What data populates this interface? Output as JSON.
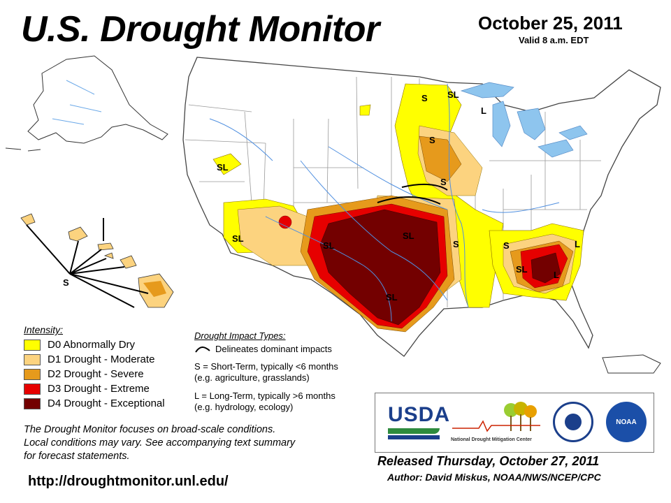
{
  "header": {
    "title": "U.S. Drought Monitor",
    "date": "October 25, 2011",
    "valid": "Valid 8 a.m. EDT"
  },
  "legend": {
    "title": "Intensity:",
    "items": [
      {
        "label": "D0 Abnormally Dry",
        "color": "#ffff00"
      },
      {
        "label": "D1 Drought - Moderate",
        "color": "#fcd37f"
      },
      {
        "label": "D2 Drought - Severe",
        "color": "#e69a1c"
      },
      {
        "label": "D3 Drought - Extreme",
        "color": "#e60000"
      },
      {
        "label": "D4 Drought - Exceptional",
        "color": "#730000"
      }
    ]
  },
  "impacts": {
    "title": "Drought Impact Types:",
    "delineates": "Delineates dominant impacts",
    "short_term": "S = Short-Term, typically <6 months",
    "short_term_eg": "(e.g. agriculture, grasslands)",
    "long_term": "L = Long-Term, typically >6 months",
    "long_term_eg": "(e.g. hydrology, ecology)"
  },
  "note": {
    "line1": "The Drought Monitor focuses on broad-scale conditions.",
    "line2": "Local conditions may vary. See accompanying text summary",
    "line3": "for forecast statements."
  },
  "url": "http://droughtmonitor.unl.edu/",
  "logos": {
    "usda": "USDA",
    "ndmc_prefix": "National",
    "ndmc_suffix": "Drought Mitigation Center",
    "noaa": "NOAA"
  },
  "released": "Released Thursday, October 27, 2011",
  "author": "Author: David Miskus, NOAA/NWS/NCEP/CPC",
  "map_labels": {
    "nw_sl": "SL",
    "az_sl": "SL",
    "hawaii_s": "S",
    "mn_s1": "S",
    "mn_sl": "SL",
    "mi_l": "L",
    "ia_s": "S",
    "mn_s2": "S",
    "ok_sl": "SL",
    "nm_sl": "SL",
    "ms_s": "S",
    "tx_sl": "SL",
    "tn_s": "S",
    "sc_l": "L",
    "ga_sl": "SL",
    "ga_l": "L"
  }
}
